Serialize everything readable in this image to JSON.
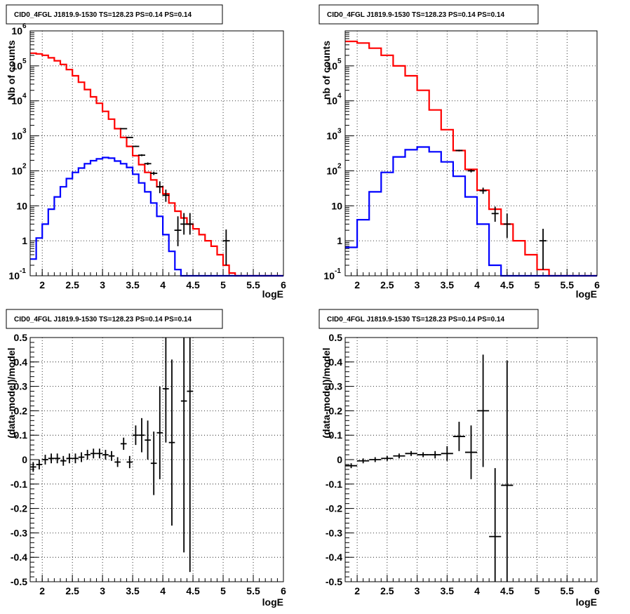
{
  "chart_data": [
    {
      "type": "line",
      "title": "CID0_4FGL J1819.9-1530 TS=128.23 PS=0.14 PS=0.14",
      "xlabel": "logE",
      "ylabel": "Nb of counts",
      "xlim": [
        1.8,
        6
      ],
      "ylim": [
        0.1,
        1000000
      ],
      "yscale": "log",
      "grid": true,
      "xticks": [
        "2",
        "2.5",
        "3",
        "3.5",
        "4",
        "4.5",
        "5",
        "5.5",
        "6"
      ],
      "yticks": [
        {
          "base": "10",
          "exp": "-1"
        },
        {
          "base": "1",
          "exp": ""
        },
        {
          "base": "10",
          "exp": ""
        },
        {
          "base": "10",
          "exp": "2"
        },
        {
          "base": "10",
          "exp": "3"
        },
        {
          "base": "10",
          "exp": "4"
        },
        {
          "base": "10",
          "exp": "5"
        },
        {
          "base": "10",
          "exp": "6"
        }
      ],
      "bin_edges": [
        1.8,
        1.9,
        2.0,
        2.1,
        2.2,
        2.3,
        2.4,
        2.5,
        2.6,
        2.7,
        2.8,
        2.9,
        3.0,
        3.1,
        3.2,
        3.3,
        3.4,
        3.5,
        3.6,
        3.7,
        3.8,
        3.9,
        4.0,
        4.1,
        4.2,
        4.3,
        4.4,
        4.5,
        4.6,
        4.7,
        4.8,
        4.9,
        5.0,
        5.1,
        5.2,
        5.3,
        5.4,
        5.5,
        5.6,
        5.7,
        5.8,
        5.9,
        6.0
      ],
      "series": [
        {
          "color": "#ff0000",
          "values": [
            230000,
            220000,
            200000,
            170000,
            140000,
            110000,
            78000,
            52000,
            34000,
            21000,
            13000,
            8500,
            5000,
            3000,
            1600,
            900,
            500,
            270,
            150,
            90,
            55,
            35,
            22,
            12,
            7,
            4.5,
            3,
            2.2,
            1.5,
            1.0,
            0.7,
            0.4,
            0.2,
            0.12,
            0.08,
            0.05,
            0.05,
            0.05,
            0.05,
            0.05,
            0.05,
            0.05
          ]
        },
        {
          "color": "#0000ff",
          "values": [
            0.3,
            1.2,
            3,
            8,
            18,
            35,
            60,
            90,
            120,
            160,
            195,
            220,
            240,
            230,
            190,
            160,
            125,
            80,
            45,
            25,
            12,
            5,
            1.5,
            0.5,
            0.15,
            0.05,
            0.05,
            0.05,
            0.05,
            0.05,
            0.05,
            0.05,
            0.05,
            0.05,
            0.05,
            0.05,
            0.05,
            0.05,
            0.05,
            0.05,
            0.05,
            0.05
          ]
        }
      ],
      "points": [
        {
          "x": 3.35,
          "y": 1600,
          "yerr_lo": 40,
          "yerr_hi": 40
        },
        {
          "x": 3.45,
          "y": 900,
          "yerr_lo": 30,
          "yerr_hi": 30
        },
        {
          "x": 3.55,
          "y": 500,
          "yerr_lo": 22,
          "yerr_hi": 22
        },
        {
          "x": 3.65,
          "y": 280,
          "yerr_lo": 17,
          "yerr_hi": 17
        },
        {
          "x": 3.75,
          "y": 160,
          "yerr_lo": 13,
          "yerr_hi": 13
        },
        {
          "x": 3.85,
          "y": 85,
          "yerr_lo": 9,
          "yerr_hi": 9
        },
        {
          "x": 3.95,
          "y": 35,
          "yerr_lo": 12,
          "yerr_hi": 15
        },
        {
          "x": 4.05,
          "y": 20,
          "yerr_lo": 7,
          "yerr_hi": 9
        },
        {
          "x": 4.25,
          "y": 2,
          "yerr_lo": 1.3,
          "yerr_hi": 3
        },
        {
          "x": 4.35,
          "y": 3,
          "yerr_lo": 1.5,
          "yerr_hi": 3.2
        },
        {
          "x": 4.45,
          "y": 3,
          "yerr_lo": 1.5,
          "yerr_hi": 3.2
        },
        {
          "x": 5.05,
          "y": 1,
          "yerr_lo": 0.8,
          "yerr_hi": 1.1
        }
      ]
    },
    {
      "type": "line",
      "title": "CID0_4FGL J1819.9-1530 TS=128.23 PS=0.14 PS=0.14",
      "xlabel": "logE",
      "ylabel": "nb of counts",
      "xlim": [
        1.8,
        6
      ],
      "ylim": [
        0.1,
        1000000
      ],
      "yscale": "log",
      "grid": true,
      "xticks": [
        "2",
        "2.5",
        "3",
        "3.5",
        "4",
        "4.5",
        "5",
        "5.5",
        "6"
      ],
      "yticks": [
        {
          "base": "10",
          "exp": "-1"
        },
        {
          "base": "1",
          "exp": ""
        },
        {
          "base": "10",
          "exp": ""
        },
        {
          "base": "10",
          "exp": "2"
        },
        {
          "base": "10",
          "exp": "3"
        },
        {
          "base": "10",
          "exp": "4"
        },
        {
          "base": "10",
          "exp": "5"
        }
      ],
      "bin_edges": [
        1.8,
        2.0,
        2.2,
        2.4,
        2.6,
        2.8,
        3.0,
        3.2,
        3.4,
        3.6,
        3.8,
        4.0,
        4.2,
        4.4,
        4.6,
        4.8,
        5.0,
        5.2,
        5.4,
        5.6,
        5.8,
        6.0
      ],
      "series": [
        {
          "color": "#ff0000",
          "values": [
            500000,
            450000,
            320000,
            200000,
            100000,
            52000,
            20000,
            5500,
            1500,
            380,
            110,
            28,
            8,
            3,
            1,
            0.4,
            0.15,
            0.05,
            0.05,
            0.05,
            0.05
          ]
        },
        {
          "color": "#0000ff",
          "values": [
            0.65,
            4,
            25,
            90,
            250,
            400,
            480,
            350,
            180,
            70,
            18,
            3,
            0.2,
            0.05,
            0.05,
            0.05,
            0.05,
            0.05,
            0.05,
            0.05,
            0.05
          ]
        }
      ],
      "points": [
        {
          "x": 3.7,
          "y": 380,
          "yerr_lo": 20,
          "yerr_hi": 20
        },
        {
          "x": 3.9,
          "y": 100,
          "yerr_lo": 10,
          "yerr_hi": 10
        },
        {
          "x": 4.1,
          "y": 27,
          "yerr_lo": 5,
          "yerr_hi": 6
        },
        {
          "x": 4.3,
          "y": 6,
          "yerr_lo": 2.5,
          "yerr_hi": 3.5
        },
        {
          "x": 4.5,
          "y": 3,
          "yerr_lo": 1.8,
          "yerr_hi": 3
        },
        {
          "x": 5.1,
          "y": 1,
          "yerr_lo": 0.85,
          "yerr_hi": 1.2
        }
      ]
    },
    {
      "type": "scatter",
      "title": "CID0_4FGL J1819.9-1530 TS=128.23 PS=0.14 PS=0.14",
      "xlabel": "logE",
      "ylabel": "(data-model)/model",
      "xlim": [
        1.8,
        6
      ],
      "ylim": [
        -0.5,
        0.5
      ],
      "yscale": "linear",
      "grid": true,
      "xticks": [
        "2",
        "2.5",
        "3",
        "3.5",
        "4",
        "4.5",
        "5",
        "5.5",
        "6"
      ],
      "yticks_labels": [
        "-0.5",
        "-0.4",
        "-0.3",
        "-0.2",
        "-0.1",
        "0",
        "0.1",
        "0.2",
        "0.3",
        "0.4",
        "0.5"
      ],
      "points": [
        {
          "x": 1.85,
          "y": -0.03,
          "xerr": 0.05,
          "yerr": 0.02
        },
        {
          "x": 1.95,
          "y": -0.02,
          "xerr": 0.05,
          "yerr": 0.02
        },
        {
          "x": 2.05,
          "y": 0.0,
          "xerr": 0.05,
          "yerr": 0.02
        },
        {
          "x": 2.15,
          "y": 0.005,
          "xerr": 0.05,
          "yerr": 0.02
        },
        {
          "x": 2.25,
          "y": 0.005,
          "xerr": 0.05,
          "yerr": 0.02
        },
        {
          "x": 2.35,
          "y": -0.005,
          "xerr": 0.05,
          "yerr": 0.02
        },
        {
          "x": 2.45,
          "y": 0.005,
          "xerr": 0.05,
          "yerr": 0.02
        },
        {
          "x": 2.55,
          "y": 0.005,
          "xerr": 0.05,
          "yerr": 0.02
        },
        {
          "x": 2.65,
          "y": 0.01,
          "xerr": 0.05,
          "yerr": 0.02
        },
        {
          "x": 2.75,
          "y": 0.02,
          "xerr": 0.05,
          "yerr": 0.02
        },
        {
          "x": 2.85,
          "y": 0.025,
          "xerr": 0.05,
          "yerr": 0.02
        },
        {
          "x": 2.95,
          "y": 0.025,
          "xerr": 0.05,
          "yerr": 0.02
        },
        {
          "x": 3.05,
          "y": 0.02,
          "xerr": 0.05,
          "yerr": 0.02
        },
        {
          "x": 3.15,
          "y": 0.015,
          "xerr": 0.05,
          "yerr": 0.02
        },
        {
          "x": 3.25,
          "y": -0.01,
          "xerr": 0.05,
          "yerr": 0.02
        },
        {
          "x": 3.35,
          "y": 0.065,
          "xerr": 0.05,
          "yerr": 0.025
        },
        {
          "x": 3.45,
          "y": -0.01,
          "xerr": 0.05,
          "yerr": 0.025
        },
        {
          "x": 3.55,
          "y": 0.1,
          "xerr": 0.05,
          "yerr": 0.04
        },
        {
          "x": 3.65,
          "y": 0.1,
          "xerr": 0.05,
          "yerr": 0.07
        },
        {
          "x": 3.75,
          "y": 0.08,
          "xerr": 0.05,
          "yerr": 0.08
        },
        {
          "x": 3.85,
          "y": -0.015,
          "xerr": 0.05,
          "yerr": 0.13
        },
        {
          "x": 3.95,
          "y": 0.11,
          "xerr": 0.05,
          "yerr": 0.19
        },
        {
          "x": 4.05,
          "y": 0.29,
          "xerr": 0.05,
          "yerr": 0.22
        },
        {
          "x": 4.15,
          "y": 0.07,
          "xerr": 0.05,
          "yerr": 0.34
        },
        {
          "x": 4.35,
          "y": 0.24,
          "xerr": 0.05,
          "yerr": 0.62
        },
        {
          "x": 4.45,
          "y": 0.28,
          "xerr": 0.05,
          "yerr": 0.74
        }
      ]
    },
    {
      "type": "scatter",
      "title": "CID0_4FGL J1819.9-1530 TS=128.23 PS=0.14 PS=0.14",
      "xlabel": "logE",
      "ylabel": "(data-model)/model",
      "xlim": [
        1.8,
        6
      ],
      "ylim": [
        -0.5,
        0.5
      ],
      "yscale": "linear",
      "grid": true,
      "xticks": [
        "2",
        "2.5",
        "3",
        "3.5",
        "4",
        "4.5",
        "5",
        "5.5",
        "6"
      ],
      "yticks_labels": [
        "-0.5",
        "-0.4",
        "-0.3",
        "-0.2",
        "-0.1",
        "0",
        "0.1",
        "0.2",
        "0.3",
        "0.4",
        "0.5"
      ],
      "points": [
        {
          "x": 1.9,
          "y": -0.025,
          "xerr": 0.1,
          "yerr": 0.01
        },
        {
          "x": 2.1,
          "y": -0.005,
          "xerr": 0.1,
          "yerr": 0.01
        },
        {
          "x": 2.3,
          "y": 0.0,
          "xerr": 0.1,
          "yerr": 0.01
        },
        {
          "x": 2.5,
          "y": 0.005,
          "xerr": 0.1,
          "yerr": 0.01
        },
        {
          "x": 2.7,
          "y": 0.015,
          "xerr": 0.1,
          "yerr": 0.01
        },
        {
          "x": 2.9,
          "y": 0.025,
          "xerr": 0.1,
          "yerr": 0.01
        },
        {
          "x": 3.1,
          "y": 0.02,
          "xerr": 0.1,
          "yerr": 0.01
        },
        {
          "x": 3.3,
          "y": 0.02,
          "xerr": 0.1,
          "yerr": 0.015
        },
        {
          "x": 3.5,
          "y": 0.025,
          "xerr": 0.1,
          "yerr": 0.03
        },
        {
          "x": 3.7,
          "y": 0.095,
          "xerr": 0.1,
          "yerr": 0.06
        },
        {
          "x": 3.9,
          "y": 0.03,
          "xerr": 0.1,
          "yerr": 0.11
        },
        {
          "x": 4.1,
          "y": 0.2,
          "xerr": 0.1,
          "yerr": 0.23
        },
        {
          "x": 4.3,
          "y": -0.315,
          "xerr": 0.1,
          "yerr": 0.28
        },
        {
          "x": 4.5,
          "y": -0.105,
          "xerr": 0.1,
          "yerr": 0.51
        }
      ]
    }
  ]
}
